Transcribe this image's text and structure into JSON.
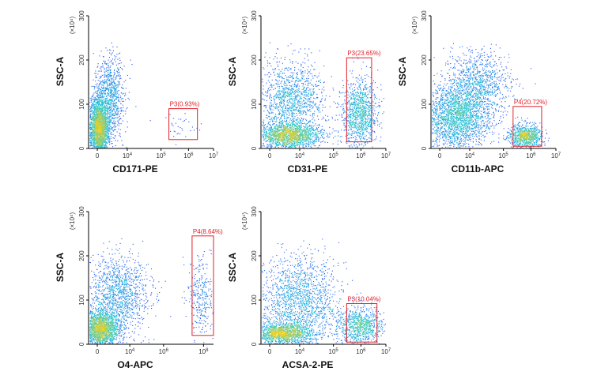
{
  "chart_data": [
    {
      "type": "scatter",
      "xlabel": "CD171-PE",
      "ylabel": "SSC-A",
      "y_scale_label": "(×10⁴)",
      "xlim": [
        0,
        7
      ],
      "ylim": [
        0,
        300
      ],
      "x_ticks": [
        0,
        4,
        5,
        6,
        7
      ],
      "y_ticks": [
        0,
        100,
        200,
        300
      ],
      "gate": {
        "label": "P3(0.93%)",
        "x_range": [
          4.5,
          6.1
        ],
        "y_range": [
          20,
          90
        ]
      },
      "populations": [
        {
          "cx": 0.55,
          "cy": 45,
          "sx": 0.28,
          "sy": 45,
          "n": 2600
        },
        {
          "cx": 1.2,
          "cy": 110,
          "sx": 0.4,
          "sy": 60,
          "n": 900
        },
        {
          "cx": 5.0,
          "cy": 45,
          "sx": 0.5,
          "sy": 20,
          "n": 35
        }
      ]
    },
    {
      "type": "scatter",
      "xlabel": "CD31-PE",
      "ylabel": "SSC-A",
      "y_scale_label": "(×10⁴)",
      "xlim": [
        0,
        7
      ],
      "ylim": [
        0,
        300
      ],
      "x_ticks": [
        0,
        4,
        5,
        6,
        7
      ],
      "y_ticks": [
        0,
        100,
        200,
        300
      ],
      "gate": {
        "label": "P3(23.65%)",
        "x_range": [
          4.8,
          6.2
        ],
        "y_range": [
          15,
          205
        ]
      },
      "populations": [
        {
          "cx": 1.5,
          "cy": 30,
          "sx": 0.9,
          "sy": 18,
          "n": 1700
        },
        {
          "cx": 1.7,
          "cy": 110,
          "sx": 0.9,
          "sy": 55,
          "n": 1300
        },
        {
          "cx": 5.5,
          "cy": 80,
          "sx": 0.5,
          "sy": 45,
          "n": 1100
        }
      ]
    },
    {
      "type": "scatter",
      "xlabel": "CD11b-APC",
      "ylabel": "SSC-A",
      "y_scale_label": "(×10⁴)",
      "xlim": [
        0,
        7
      ],
      "ylim": [
        0,
        300
      ],
      "x_ticks": [
        0,
        4,
        5,
        6,
        7
      ],
      "y_ticks": [
        0,
        100,
        200,
        300
      ],
      "gate": {
        "label": "P4(20.72%)",
        "x_range": [
          4.6,
          6.2
        ],
        "y_range": [
          5,
          95
        ]
      },
      "populations": [
        {
          "cx": 1.4,
          "cy": 70,
          "sx": 1.0,
          "sy": 45,
          "n": 2200
        },
        {
          "cx": 2.6,
          "cy": 150,
          "sx": 0.9,
          "sy": 45,
          "n": 900
        },
        {
          "cx": 5.3,
          "cy": 28,
          "sx": 0.45,
          "sy": 15,
          "n": 900
        }
      ]
    },
    {
      "type": "scatter",
      "xlabel": "O4-APC",
      "ylabel": "SSC-A",
      "y_scale_label": "(×10⁴)",
      "xlim": [
        0,
        7
      ],
      "ylim": [
        0,
        300
      ],
      "x_ticks": [
        0,
        4,
        6,
        8
      ],
      "y_ticks": [
        0,
        100,
        200,
        300
      ],
      "gate": {
        "label": "P4(8.64%)",
        "x_range": [
          5.8,
          7.0
        ],
        "y_range": [
          20,
          245
        ]
      },
      "populations": [
        {
          "cx": 0.6,
          "cy": 35,
          "sx": 0.55,
          "sy": 25,
          "n": 2000
        },
        {
          "cx": 1.6,
          "cy": 110,
          "sx": 0.9,
          "sy": 55,
          "n": 1300
        },
        {
          "cx": 6.3,
          "cy": 110,
          "sx": 0.4,
          "sy": 55,
          "n": 320
        }
      ]
    },
    {
      "type": "scatter",
      "xlabel": "ACSA-2-PE",
      "ylabel": "SSC-A",
      "y_scale_label": "(×10⁴)",
      "xlim": [
        0,
        7
      ],
      "ylim": [
        0,
        300
      ],
      "x_ticks": [
        0,
        4,
        5,
        6,
        7
      ],
      "y_ticks": [
        0,
        100,
        200,
        300
      ],
      "gate": {
        "label": "P3(10.04%)",
        "x_range": [
          4.8,
          6.5
        ],
        "y_range": [
          5,
          92
        ]
      },
      "populations": [
        {
          "cx": 1.2,
          "cy": 25,
          "sx": 0.8,
          "sy": 15,
          "n": 1400
        },
        {
          "cx": 2.1,
          "cy": 100,
          "sx": 1.1,
          "sy": 60,
          "n": 1600
        },
        {
          "cx": 5.5,
          "cy": 40,
          "sx": 0.7,
          "sy": 25,
          "n": 900
        }
      ]
    }
  ],
  "colors": {
    "gate": "#e0212a",
    "density_low": "#2a2aff",
    "density_mid": "#22c8d8",
    "density_high": "#f0d020",
    "axis": "#000000"
  }
}
